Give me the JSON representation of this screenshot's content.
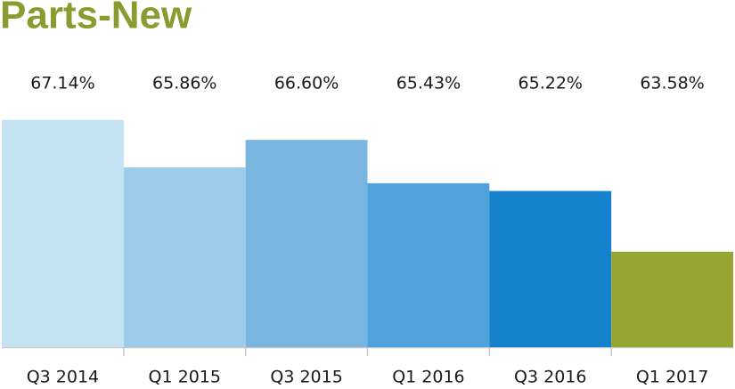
{
  "chart_data": {
    "type": "bar",
    "title": "Parts-New",
    "categories": [
      "Q3 2014",
      "Q1 2015",
      "Q3 2015",
      "Q1 2016",
      "Q3 2016",
      "Q1 2017"
    ],
    "values": [
      67.14,
      65.86,
      66.6,
      65.43,
      65.22,
      63.58
    ],
    "value_labels": [
      "67.14%",
      "65.86%",
      "66.60%",
      "65.43%",
      "65.22%",
      "63.58%"
    ],
    "colors": [
      "#c5e2f3",
      "#9dcbea",
      "#78b6e0",
      "#4fa3da",
      "#1381cb",
      "#97a532"
    ],
    "ylim": [
      61,
      68
    ]
  }
}
